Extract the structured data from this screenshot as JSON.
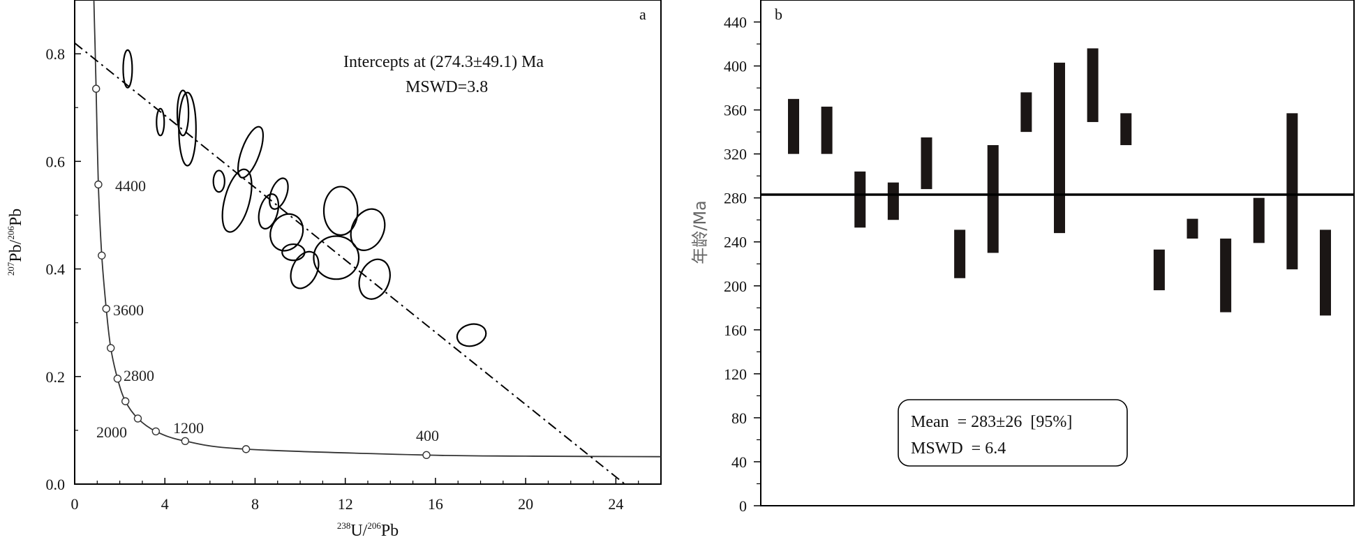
{
  "chart_data": [
    {
      "panel": "a",
      "type": "scatter",
      "xlabel": {
        "sup": "238",
        "main": "U/",
        "sup2": "206",
        "main2": "Pb"
      },
      "ylabel": {
        "sup": "207",
        "main": "Pb/",
        "sup2": "206",
        "main2": "Pb"
      },
      "xlim": [
        0,
        26
      ],
      "ylim": [
        0,
        0.9
      ],
      "x_ticks": [
        "0",
        "4",
        "8",
        "12",
        "16",
        "20",
        "24"
      ],
      "y_ticks": [
        "0.0",
        "0.2",
        "0.4",
        "0.6",
        "0.8"
      ],
      "annotation_line1": "Intercepts at (274.3±49.1)  Ma",
      "annotation_line2": "MSWD=3.8",
      "concordia_labels": [
        "4400",
        "3600",
        "2800",
        "2000",
        "1200",
        "400"
      ],
      "concordia_points": [
        {
          "x": 0.95,
          "y": 0.735
        },
        {
          "x": 1.05,
          "y": 0.557
        },
        {
          "x": 1.2,
          "y": 0.425
        },
        {
          "x": 1.4,
          "y": 0.326
        },
        {
          "x": 1.6,
          "y": 0.253
        },
        {
          "x": 1.9,
          "y": 0.196
        },
        {
          "x": 2.25,
          "y": 0.154
        },
        {
          "x": 2.8,
          "y": 0.122
        },
        {
          "x": 3.6,
          "y": 0.098
        },
        {
          "x": 4.9,
          "y": 0.08
        },
        {
          "x": 7.6,
          "y": 0.065
        },
        {
          "x": 15.6,
          "y": 0.054
        }
      ],
      "discordia_line": {
        "x_start": 0,
        "y_start": 0.82,
        "x_end": 24.4,
        "y_end": 0.0
      },
      "ellipses": [
        {
          "x": 2.35,
          "y": 0.772,
          "sx": 0.2,
          "sy": 0.035,
          "angle": 0
        },
        {
          "x": 3.8,
          "y": 0.673,
          "sx": 0.17,
          "sy": 0.025,
          "angle": 0
        },
        {
          "x": 4.8,
          "y": 0.69,
          "sx": 0.25,
          "sy": 0.042,
          "angle": 0
        },
        {
          "x": 5.0,
          "y": 0.66,
          "sx": 0.38,
          "sy": 0.068,
          "angle": 0
        },
        {
          "x": 6.4,
          "y": 0.563,
          "sx": 0.25,
          "sy": 0.02,
          "angle": 0
        },
        {
          "x": 7.2,
          "y": 0.527,
          "sx": 0.55,
          "sy": 0.06,
          "angle": 15
        },
        {
          "x": 7.8,
          "y": 0.617,
          "sx": 0.4,
          "sy": 0.05,
          "angle": 20
        },
        {
          "x": 8.6,
          "y": 0.507,
          "sx": 0.4,
          "sy": 0.033,
          "angle": 15
        },
        {
          "x": 9.05,
          "y": 0.54,
          "sx": 0.35,
          "sy": 0.03,
          "angle": 20
        },
        {
          "x": 9.4,
          "y": 0.468,
          "sx": 0.7,
          "sy": 0.035,
          "angle": 25
        },
        {
          "x": 9.7,
          "y": 0.431,
          "sx": 0.5,
          "sy": 0.015,
          "angle": 0
        },
        {
          "x": 10.2,
          "y": 0.398,
          "sx": 0.55,
          "sy": 0.036,
          "angle": 25
        },
        {
          "x": 11.6,
          "y": 0.421,
          "sx": 1.0,
          "sy": 0.04,
          "angle": 0
        },
        {
          "x": 11.8,
          "y": 0.508,
          "sx": 0.75,
          "sy": 0.045,
          "angle": 0
        },
        {
          "x": 13.0,
          "y": 0.473,
          "sx": 0.7,
          "sy": 0.04,
          "angle": 25
        },
        {
          "x": 13.3,
          "y": 0.381,
          "sx": 0.65,
          "sy": 0.038,
          "angle": 20
        },
        {
          "x": 17.6,
          "y": 0.277,
          "sx": 0.65,
          "sy": 0.02,
          "angle": -15
        }
      ]
    },
    {
      "panel": "b",
      "type": "bar",
      "ylabel": "年龄/Ma",
      "ylim": [
        0,
        460
      ],
      "y_ticks": [
        "0",
        "40",
        "80",
        "120",
        "160",
        "200",
        "240",
        "280",
        "320",
        "360",
        "400",
        "440"
      ],
      "mean_value": 283,
      "legend_line1": "Mean  = 283±26  [95%]",
      "legend_line2": "MSWD  = 6.4",
      "bars": [
        {
          "low": 320,
          "high": 370
        },
        {
          "low": 320,
          "high": 363
        },
        {
          "low": 253,
          "high": 304
        },
        {
          "low": 260,
          "high": 294
        },
        {
          "low": 288,
          "high": 335
        },
        {
          "low": 207,
          "high": 251
        },
        {
          "low": 230,
          "high": 328
        },
        {
          "low": 340,
          "high": 376
        },
        {
          "low": 248,
          "high": 403
        },
        {
          "low": 349,
          "high": 416
        },
        {
          "low": 328,
          "high": 357
        },
        {
          "low": 196,
          "high": 233
        },
        {
          "low": 243,
          "high": 261
        },
        {
          "low": 176,
          "high": 243
        },
        {
          "low": 239,
          "high": 280
        },
        {
          "low": 215,
          "high": 357
        },
        {
          "low": 173,
          "high": 251
        }
      ],
      "colors": {
        "bar": "#1b1615",
        "line": "#000000"
      }
    }
  ]
}
